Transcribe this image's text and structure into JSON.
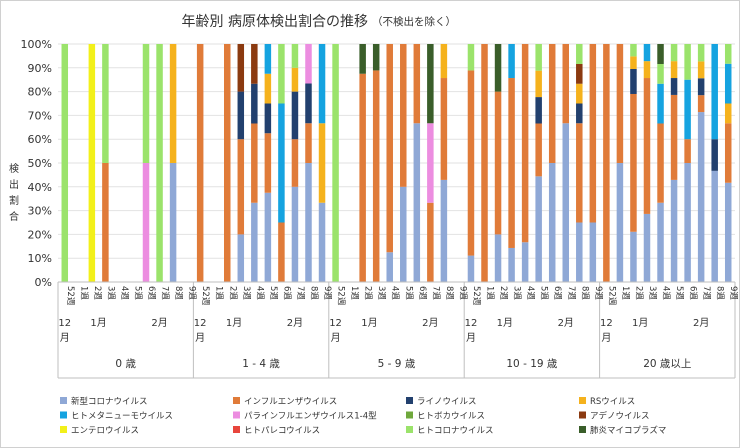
{
  "chart_data": {
    "type": "bar",
    "stacked": true,
    "percent": true,
    "title": "年齢別 病原体検出割合の推移",
    "subtitle": "（不検出を除く）",
    "ylabel": "検出割合",
    "ylim": [
      0,
      100
    ],
    "yticks": [
      "0%",
      "10%",
      "20%",
      "30%",
      "40%",
      "50%",
      "60%",
      "70%",
      "80%",
      "90%",
      "100%"
    ],
    "weeks": [
      "52週",
      "1週",
      "2週",
      "3週",
      "4週",
      "5週",
      "6週",
      "7週",
      "8週",
      "9週"
    ],
    "month_labels": [
      {
        "label": "12月",
        "week_index": 0
      },
      {
        "label": "1月",
        "week_index": 2.5
      },
      {
        "label": "2月",
        "week_index": 7
      }
    ],
    "series": [
      {
        "name": "新型コロナウイルス",
        "color": "#8fa8d6"
      },
      {
        "name": "インフルエンザウイルス",
        "color": "#e07b39"
      },
      {
        "name": "ライノウイルス",
        "color": "#22406e"
      },
      {
        "name": "RSウイルス",
        "color": "#f5b21d"
      },
      {
        "name": "ヒトメタニューモウイルス",
        "color": "#15a3e0"
      },
      {
        "name": "パラインフルエンザウイルス1-4型",
        "color": "#ec8de0"
      },
      {
        "name": "ヒトボカウイルス",
        "color": "#6fa83c"
      },
      {
        "name": "アデノウイルス",
        "color": "#8b3a10"
      },
      {
        "name": "エンテロウイルス",
        "color": "#f2f01a"
      },
      {
        "name": "ヒトパレコウイルス",
        "color": "#e8453c"
      },
      {
        "name": "ヒトコロナウイルス",
        "color": "#9be36b"
      },
      {
        "name": "肺炎マイコプラズマ",
        "color": "#3a5e2a"
      }
    ],
    "groups": [
      {
        "label": "0 歳",
        "bars": [
          {
            "ヒトコロナウイルス": 100
          },
          {},
          {
            "エンテロウイルス": 100
          },
          {
            "インフルエンザウイルス": 50,
            "ヒトコロナウイルス": 50
          },
          {},
          {},
          {
            "パラインフルエンザウイルス1-4型": 50,
            "ヒトコロナウイルス": 50
          },
          {
            "ヒトコロナウイルス": 100
          },
          {
            "新型コロナウイルス": 50,
            "RSウイルス": 50
          },
          {}
        ]
      },
      {
        "label": "1 - 4 歳",
        "bars": [
          {
            "インフルエンザウイルス": 100
          },
          {},
          {
            "インフルエンザウイルス": 100
          },
          {
            "新型コロナウイルス": 20,
            "インフルエンザウイルス": 40,
            "ライノウイルス": 20,
            "アデノウイルス": 20
          },
          {
            "新型コロナウイルス": 33.3,
            "インフルエンザウイルス": 33.3,
            "ライノウイルス": 16.7,
            "アデノウイルス": 16.7
          },
          {
            "新型コロナウイルス": 37.5,
            "インフルエンザウイルス": 25,
            "ライノウイルス": 12.5,
            "RSウイルス": 12.5,
            "ヒトメタニューモウイルス": 12.5
          },
          {
            "インフルエンザウイルス": 25,
            "ヒトメタニューモウイルス": 50,
            "ヒトコロナウイルス": 25
          },
          {
            "新型コロナウイルス": 40,
            "インフルエンザウイルス": 20,
            "ライノウイルス": 20,
            "RSウイルス": 10,
            "ヒトコロナウイルス": 10
          },
          {
            "新型コロナウイルス": 50,
            "インフルエンザウイルス": 16.7,
            "ライノウイルス": 16.7,
            "パラインフルエンザウイルス1-4型": 16.6
          },
          {
            "新型コロナウイルス": 33.3,
            "RSウイルス": 33.4,
            "ヒトメタニューモウイルス": 33.3
          }
        ]
      },
      {
        "label": "5 - 9 歳",
        "bars": [
          {
            "ヒトコロナウイルス": 100
          },
          {},
          {
            "インフルエンザウイルス": 87.5,
            "肺炎マイコプラズマ": 12.5
          },
          {
            "インフルエンザウイルス": 88.9,
            "肺炎マイコプラズマ": 11.1
          },
          {
            "新型コロナウイルス": 12.5,
            "インフルエンザウイルス": 87.5
          },
          {
            "新型コロナウイルス": 40,
            "インフルエンザウイルス": 60
          },
          {
            "新型コロナウイルス": 66.7,
            "インフルエンザウイルス": 33.3
          },
          {
            "インフルエンザウイルス": 33.3,
            "パラインフルエンザウイルス1-4型": 33.4,
            "肺炎マイコプラズマ": 33.3
          },
          {
            "新型コロナウイルス": 42.9,
            "インフルエンザウイルス": 42.8,
            "RSウイルス": 14.3
          },
          {}
        ]
      },
      {
        "label": "10 - 19 歳",
        "bars": [
          {
            "新型コロナウイルス": 11.1,
            "インフルエンザウイルス": 77.8,
            "ヒトコロナウイルス": 11.1
          },
          {
            "インフルエンザウイルス": 100
          },
          {
            "新型コロナウイルス": 20,
            "インフルエンザウイルス": 60,
            "肺炎マイコプラズマ": 20
          },
          {
            "新型コロナウイルス": 14.3,
            "インフルエンザウイルス": 71.4,
            "ヒトメタニューモウイルス": 14.3
          },
          {
            "新型コロナウイルス": 16.7,
            "インフルエンザウイルス": 83.3
          },
          {
            "新型コロナウイルス": 44.4,
            "インフルエンザウイルス": 22.2,
            "ライノウイルス": 11.1,
            "RSウイルス": 11.1,
            "ヒトコロナウイルス": 11.2
          },
          {
            "新型コロナウイルス": 50,
            "インフルエンザウイルス": 50
          },
          {
            "新型コロナウイルス": 66.7,
            "インフルエンザウイルス": 33.3
          },
          {
            "新型コロナウイルス": 25,
            "インフルエンザウイルス": 41.7,
            "ライノウイルス": 8.3,
            "RSウイルス": 8.3,
            "アデノウイルス": 8.3,
            "ヒトコロナウイルス": 8.4
          },
          {
            "新型コロナウイルス": 25,
            "インフルエンザウイルス": 75
          }
        ]
      },
      {
        "label": "20 歳以上",
        "bars": [
          {
            "インフルエンザウイルス": 100
          },
          {
            "新型コロナウイルス": 50,
            "インフルエンザウイルス": 50
          },
          {
            "新型コロナウイルス": 21.1,
            "インフルエンザウイルス": 57.9,
            "ライノウイルス": 10.5,
            "RSウイルス": 5.3,
            "ヒトコロナウイルス": 5.2
          },
          {
            "新型コロナウイルス": 28.6,
            "インフルエンザウイルス": 57.1,
            "RSウイルス": 7.1,
            "ヒトメタニューモウイルス": 7.2
          },
          {
            "新型コロナウイルス": 33.3,
            "インフルエンザウイルス": 33.3,
            "ヒトメタニューモウイルス": 16.7,
            "ヒトコロナウイルス": 8.3,
            "肺炎マイコプラズマ": 8.4
          },
          {
            "新型コロナウイルス": 42.9,
            "インフルエンザウイルス": 35.7,
            "ライノウイルス": 7.1,
            "RSウイルス": 7.1,
            "ヒトコロナウイルス": 7.2
          },
          {
            "新型コロナウイルス": 50,
            "インフルエンザウイルス": 10,
            "ヒトメタニューモウイルス": 25,
            "ヒトコロナウイルス": 15
          },
          {
            "新型コロナウイルス": 71.4,
            "インフルエンザウイルス": 7.1,
            "ライノウイルス": 7.1,
            "RSウイルス": 7.1,
            "ヒトコロナウイルス": 7.3
          },
          {
            "新型コロナウイルス": 46.7,
            "ライノウイルス": 13.3,
            "ヒトメタニューモウイルス": 40
          },
          {
            "新型コロナウイルス": 41.7,
            "インフルエンザウイルス": 25,
            "RSウイルス": 8.3,
            "ヒトメタニューモウイルス": 16.7,
            "ヒトコロナウイルス": 8.3
          }
        ]
      }
    ]
  }
}
